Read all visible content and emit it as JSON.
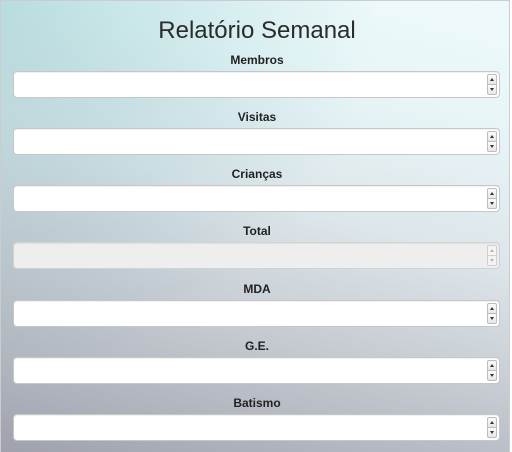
{
  "header": {
    "title": "Relatório Semanal"
  },
  "fields": [
    {
      "label": "Membros",
      "value": "",
      "disabled": false
    },
    {
      "label": "Visitas",
      "value": "",
      "disabled": false
    },
    {
      "label": "Crianças",
      "value": "",
      "disabled": false
    },
    {
      "label": "Total",
      "value": "",
      "disabled": true
    },
    {
      "label": "MDA",
      "value": "",
      "disabled": false
    },
    {
      "label": "G.E.",
      "value": "",
      "disabled": false
    },
    {
      "label": "Batismo",
      "value": "",
      "disabled": false
    }
  ],
  "icons": {
    "increment": "triangle-up-icon",
    "decrement": "triangle-down-icon"
  }
}
